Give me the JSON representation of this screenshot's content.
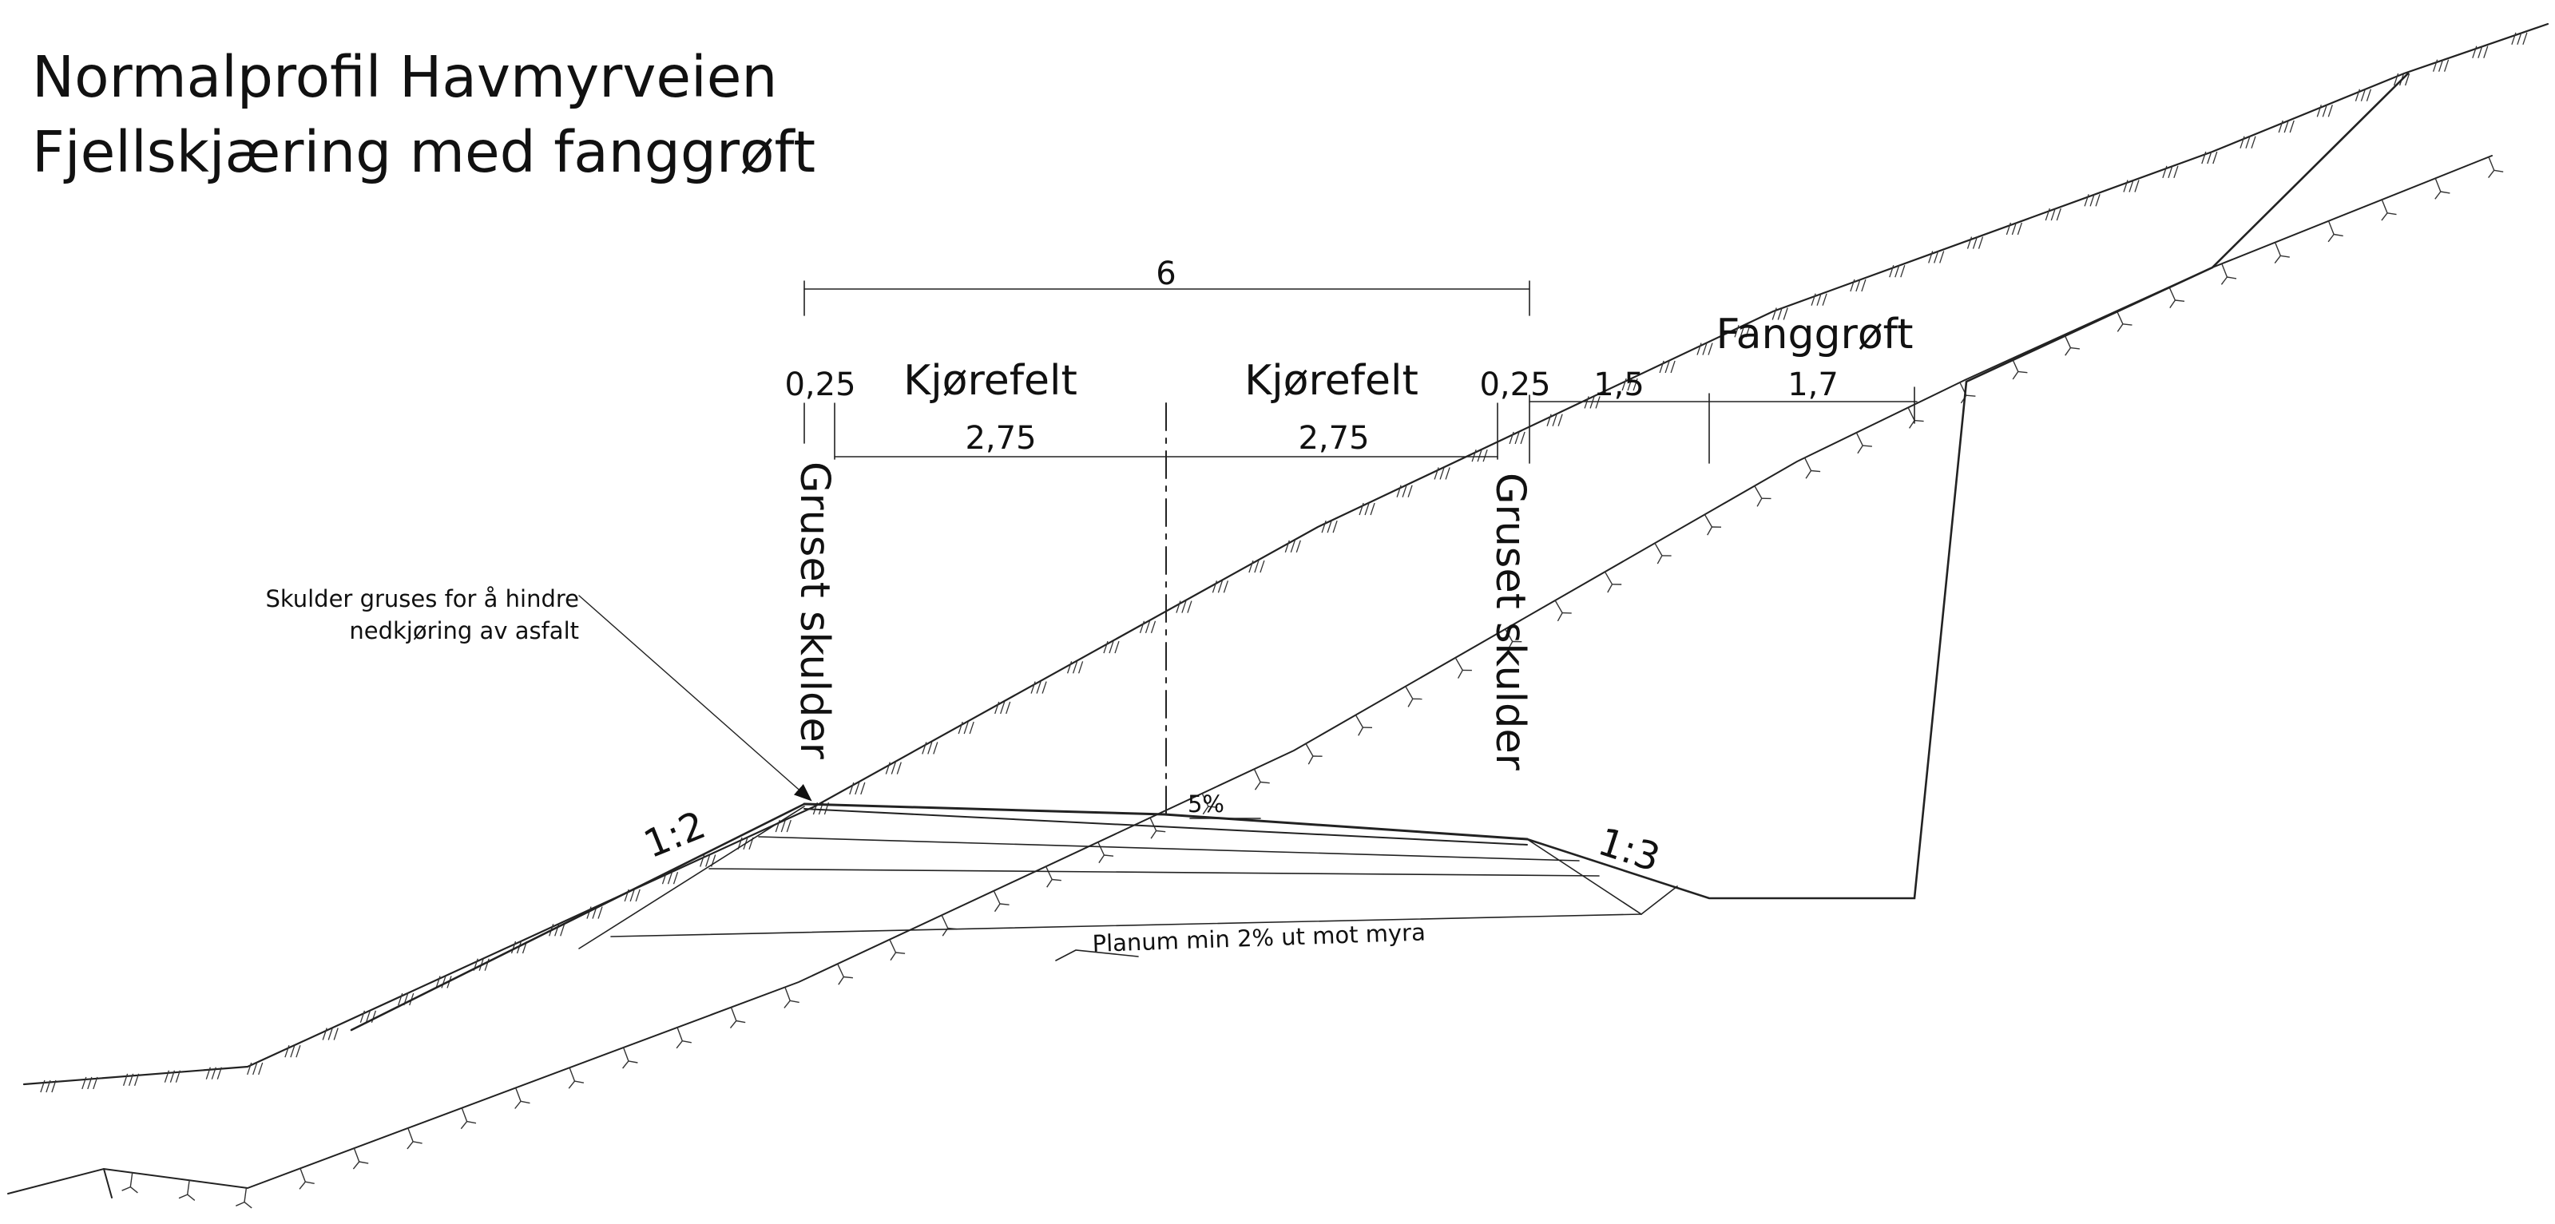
{
  "title": {
    "line1": "Normalprofil Havmyrveien",
    "line2": "Fjellskjæring med fanggrøft"
  },
  "labels": {
    "total_width": "6",
    "shoulder_left": "0,25",
    "shoulder_right": "0,25",
    "lane_left": "Kjørefelt",
    "lane_right": "Kjørefelt",
    "lane_left_width": "2,75",
    "lane_right_width": "2,75",
    "ditch_a": "1,5",
    "ditch_b": "1,7",
    "catch_ditch": "Fanggrøft",
    "gravel_left": "Gruset skulder",
    "gravel_right": "Gruset skulder",
    "note_line1": "Skulder gruses for å hindre",
    "note_line2": "nedkjøring av asfalt",
    "slope_left": "1:2",
    "slope_right": "1:3",
    "crossfall": "5%",
    "subgrade": "Planum min 2% ut mot myra"
  }
}
